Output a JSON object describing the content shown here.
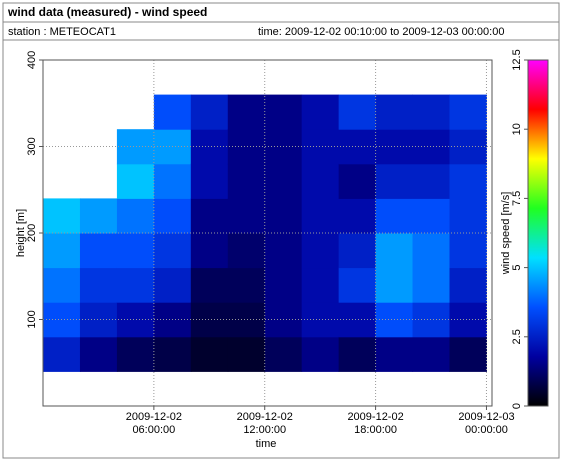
{
  "chart_data": {
    "type": "heatmap",
    "title": "wind data (measured) - wind speed",
    "station": "station : METEOCAT1",
    "period": "time: 2009-12-02 00:10:00 to 2009-12-03 00:00:00",
    "xlabel": "time",
    "ylabel": "height [m]",
    "colorbar_label": "wind speed [m/s]",
    "xlim": [
      0,
      24.3
    ],
    "ylim": [
      0,
      400
    ],
    "xticks": [
      {
        "value": 6,
        "label": "2009-12-02 06:00:00"
      },
      {
        "value": 12,
        "label": "2009-12-02 12:00:00"
      },
      {
        "value": 18,
        "label": "2009-12-02 18:00:00"
      },
      {
        "value": 24,
        "label": "2009-12-03 00:00:00"
      }
    ],
    "yticks": [
      100,
      200,
      300,
      400
    ],
    "grid": true,
    "clim": [
      0,
      12.5
    ],
    "cticks": [
      0,
      2.5,
      5,
      7.5,
      10,
      12.5
    ],
    "colors": [
      "#000000",
      "#0000a0",
      "#0050ff",
      "#00e0ff",
      "#20ff20",
      "#ffff00",
      "#ff0000",
      "#ff00ff"
    ],
    "xbins": [
      0,
      2,
      4,
      6,
      8,
      10,
      12,
      14,
      16,
      18,
      20,
      22,
      24
    ],
    "ybins": [
      40,
      80,
      120,
      160,
      200,
      240,
      280,
      320,
      360
    ],
    "values": [
      [
        2.5,
        3.5,
        4,
        4.5,
        5,
        null,
        null,
        null
      ],
      [
        1.5,
        2.5,
        3,
        3.5,
        4.5,
        null,
        null,
        null
      ],
      [
        1,
        2,
        3,
        3.5,
        4,
        5,
        4.5,
        null
      ],
      [
        0.8,
        1.5,
        2.5,
        3,
        3.5,
        4,
        4.5,
        3.5
      ],
      [
        0.5,
        0.8,
        1,
        1.5,
        1.5,
        2,
        2,
        2.5
      ],
      [
        0.5,
        0.8,
        1,
        1.2,
        1.5,
        1.5,
        1.5,
        1.5
      ],
      [
        1,
        1.5,
        1.5,
        1.5,
        1.5,
        1.5,
        1.5,
        1.5
      ],
      [
        1.5,
        2,
        2,
        2,
        2,
        2,
        2,
        2
      ],
      [
        1,
        2,
        3,
        2.5,
        2,
        1.5,
        2,
        3
      ],
      [
        1.5,
        3.5,
        4.5,
        4.5,
        3.5,
        2.5,
        2,
        2.5
      ],
      [
        1.5,
        3,
        4,
        4,
        3.5,
        2.5,
        2,
        2.5
      ],
      [
        1,
        2,
        2.5,
        3,
        3,
        3,
        2.5,
        3
      ]
    ]
  }
}
